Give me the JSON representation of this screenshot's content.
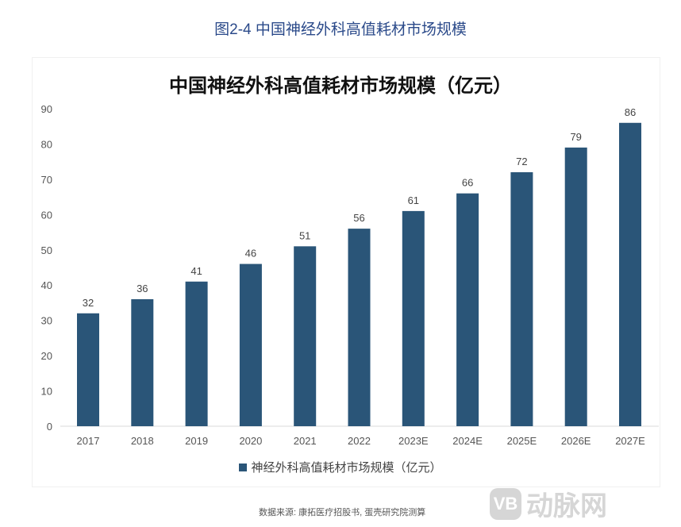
{
  "figure_caption": "图2-4 中国神经外科高值耗材市场规模",
  "chart_data": {
    "type": "bar",
    "title": "中国神经外科高值耗材市场规模（亿元）",
    "categories": [
      "2017",
      "2018",
      "2019",
      "2020",
      "2021",
      "2022",
      "2023E",
      "2024E",
      "2025E",
      "2026E",
      "2027E"
    ],
    "series": [
      {
        "name": "神经外科高值耗材市场规模（亿元）",
        "values": [
          32,
          36,
          41,
          46,
          51,
          56,
          61,
          66,
          72,
          79,
          86
        ]
      }
    ],
    "ylim": [
      0,
      90
    ],
    "yticks": [
      0,
      10,
      20,
      30,
      40,
      50,
      60,
      70,
      80,
      90
    ],
    "grid": false,
    "legend": "bottom",
    "color": "#2a5578"
  },
  "source": "数据来源: 康拓医疗招股书, 蛋壳研究院测算",
  "watermark": "动脉网"
}
